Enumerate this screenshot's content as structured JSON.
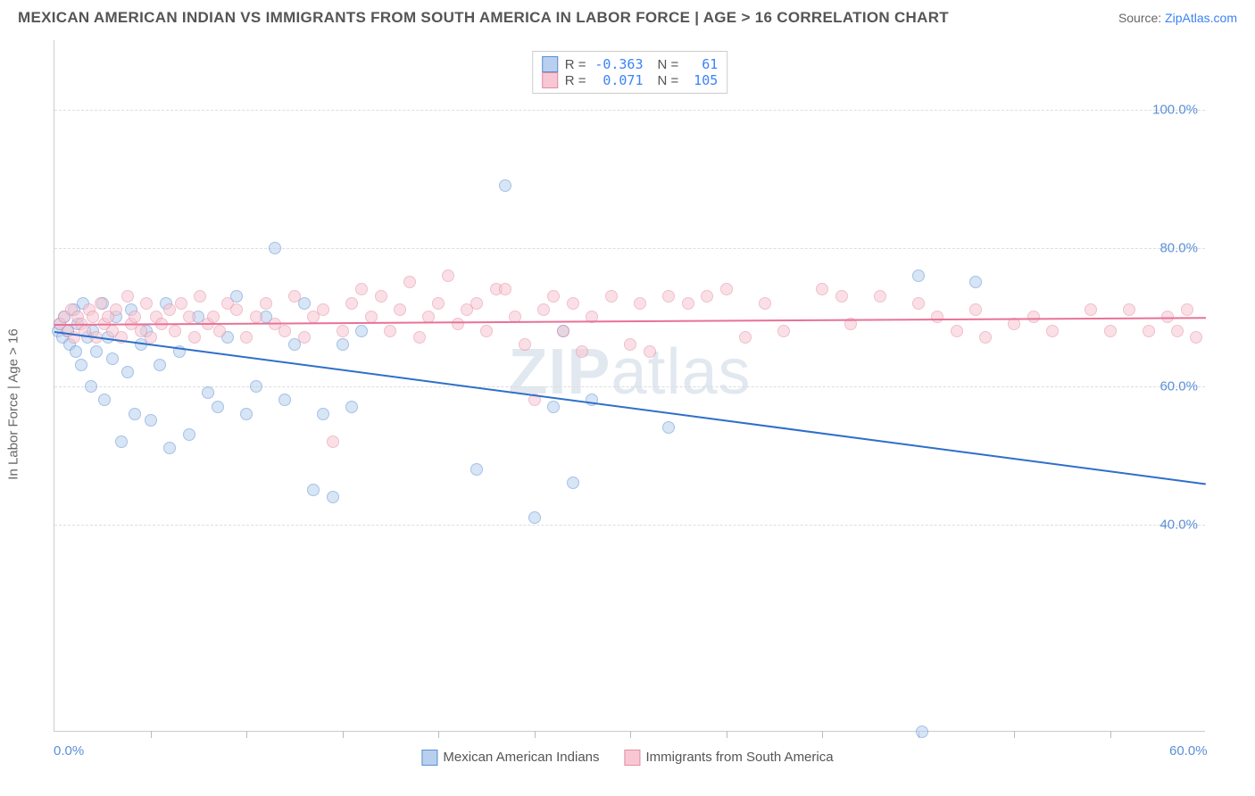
{
  "header": {
    "title": "MEXICAN AMERICAN INDIAN VS IMMIGRANTS FROM SOUTH AMERICA IN LABOR FORCE | AGE > 16 CORRELATION CHART",
    "source_prefix": "Source: ",
    "source_link": "ZipAtlas.com"
  },
  "chart": {
    "type": "scatter",
    "ylabel": "In Labor Force | Age > 16",
    "xlim": [
      0,
      60
    ],
    "ylim": [
      10,
      110
    ],
    "yticks": [
      {
        "v": 40,
        "label": "40.0%"
      },
      {
        "v": 60,
        "label": "60.0%"
      },
      {
        "v": 80,
        "label": "80.0%"
      },
      {
        "v": 100,
        "label": "100.0%"
      }
    ],
    "xticks_minor": [
      5,
      10,
      15,
      20,
      25,
      30,
      35,
      40,
      45,
      50,
      55
    ],
    "xticks_label": [
      {
        "v": 0,
        "label": "0.0%"
      },
      {
        "v": 60,
        "label": "60.0%"
      }
    ],
    "marker_radius": 7,
    "marker_opacity": 0.55,
    "background_color": "#ffffff",
    "grid_color": "#dddddd",
    "watermark": "ZIPatlas"
  },
  "legend_top": {
    "series": [
      {
        "swatch_fill": "#b8d0ee",
        "swatch_border": "#5a8fd6",
        "R": "-0.363",
        "N": "61"
      },
      {
        "swatch_fill": "#f7c8d3",
        "swatch_border": "#e68aa2",
        "R": "0.071",
        "N": "105"
      }
    ],
    "label_R": "R =",
    "label_N": "N ="
  },
  "legend_bottom": {
    "items": [
      {
        "swatch_fill": "#b8d0ee",
        "swatch_border": "#5a8fd6",
        "label": "Mexican American Indians"
      },
      {
        "swatch_fill": "#f7c8d3",
        "swatch_border": "#e68aa2",
        "label": "Immigrants from South America"
      }
    ]
  },
  "series": [
    {
      "name": "Mexican American Indians",
      "fill": "#b8d0ee",
      "stroke": "#5a8fd6",
      "trend": {
        "x1": 0,
        "y1": 68,
        "x2": 60,
        "y2": 46,
        "color": "#2f6fc9",
        "width": 2
      },
      "points": [
        [
          0.2,
          68
        ],
        [
          0.3,
          69
        ],
        [
          0.4,
          67
        ],
        [
          0.5,
          70
        ],
        [
          0.7,
          68
        ],
        [
          0.8,
          66
        ],
        [
          1,
          71
        ],
        [
          1.1,
          65
        ],
        [
          1.2,
          69
        ],
        [
          1.4,
          63
        ],
        [
          1.5,
          72
        ],
        [
          1.7,
          67
        ],
        [
          1.9,
          60
        ],
        [
          2,
          68
        ],
        [
          2.2,
          65
        ],
        [
          2.5,
          72
        ],
        [
          2.6,
          58
        ],
        [
          2.8,
          67
        ],
        [
          3,
          64
        ],
        [
          3.2,
          70
        ],
        [
          3.5,
          52
        ],
        [
          3.8,
          62
        ],
        [
          4,
          71
        ],
        [
          4.2,
          56
        ],
        [
          4.5,
          66
        ],
        [
          4.8,
          68
        ],
        [
          5,
          55
        ],
        [
          5.5,
          63
        ],
        [
          5.8,
          72
        ],
        [
          6,
          51
        ],
        [
          6.5,
          65
        ],
        [
          7,
          53
        ],
        [
          7.5,
          70
        ],
        [
          8,
          59
        ],
        [
          8.5,
          57
        ],
        [
          9,
          67
        ],
        [
          9.5,
          73
        ],
        [
          10,
          56
        ],
        [
          10.5,
          60
        ],
        [
          11,
          70
        ],
        [
          11.5,
          80
        ],
        [
          12,
          58
        ],
        [
          12.5,
          66
        ],
        [
          13,
          72
        ],
        [
          13.5,
          45
        ],
        [
          14,
          56
        ],
        [
          14.5,
          44
        ],
        [
          15,
          66
        ],
        [
          15.5,
          57
        ],
        [
          16,
          68
        ],
        [
          22,
          48
        ],
        [
          23.5,
          89
        ],
        [
          25,
          41
        ],
        [
          26,
          57
        ],
        [
          26.5,
          68
        ],
        [
          27,
          46
        ],
        [
          28,
          58
        ],
        [
          32,
          54
        ],
        [
          45,
          76
        ],
        [
          45.2,
          10
        ],
        [
          48,
          75
        ]
      ]
    },
    {
      "name": "Immigrants from South America",
      "fill": "#f7c8d3",
      "stroke": "#e68aa2",
      "trend": {
        "x1": 0,
        "y1": 69,
        "x2": 60,
        "y2": 70,
        "color": "#e87298",
        "width": 2
      },
      "points": [
        [
          0.3,
          69
        ],
        [
          0.5,
          70
        ],
        [
          0.7,
          68
        ],
        [
          0.9,
          71
        ],
        [
          1,
          67
        ],
        [
          1.2,
          70
        ],
        [
          1.4,
          69
        ],
        [
          1.6,
          68
        ],
        [
          1.8,
          71
        ],
        [
          2,
          70
        ],
        [
          2.2,
          67
        ],
        [
          2.4,
          72
        ],
        [
          2.6,
          69
        ],
        [
          2.8,
          70
        ],
        [
          3,
          68
        ],
        [
          3.2,
          71
        ],
        [
          3.5,
          67
        ],
        [
          3.8,
          73
        ],
        [
          4,
          69
        ],
        [
          4.2,
          70
        ],
        [
          4.5,
          68
        ],
        [
          4.8,
          72
        ],
        [
          5,
          67
        ],
        [
          5.3,
          70
        ],
        [
          5.6,
          69
        ],
        [
          6,
          71
        ],
        [
          6.3,
          68
        ],
        [
          6.6,
          72
        ],
        [
          7,
          70
        ],
        [
          7.3,
          67
        ],
        [
          7.6,
          73
        ],
        [
          8,
          69
        ],
        [
          8.3,
          70
        ],
        [
          8.6,
          68
        ],
        [
          9,
          72
        ],
        [
          9.5,
          71
        ],
        [
          10,
          67
        ],
        [
          10.5,
          70
        ],
        [
          11,
          72
        ],
        [
          11.5,
          69
        ],
        [
          12,
          68
        ],
        [
          12.5,
          73
        ],
        [
          13,
          67
        ],
        [
          13.5,
          70
        ],
        [
          14,
          71
        ],
        [
          14.5,
          52
        ],
        [
          15,
          68
        ],
        [
          15.5,
          72
        ],
        [
          16,
          74
        ],
        [
          16.5,
          70
        ],
        [
          17,
          73
        ],
        [
          17.5,
          68
        ],
        [
          18,
          71
        ],
        [
          18.5,
          75
        ],
        [
          19,
          67
        ],
        [
          19.5,
          70
        ],
        [
          20,
          72
        ],
        [
          20.5,
          76
        ],
        [
          21,
          69
        ],
        [
          21.5,
          71
        ],
        [
          22,
          72
        ],
        [
          22.5,
          68
        ],
        [
          23,
          74
        ],
        [
          23.5,
          74
        ],
        [
          24,
          70
        ],
        [
          24.5,
          66
        ],
        [
          25,
          58
        ],
        [
          25.5,
          71
        ],
        [
          26,
          73
        ],
        [
          26.5,
          68
        ],
        [
          27,
          72
        ],
        [
          27.5,
          65
        ],
        [
          28,
          70
        ],
        [
          29,
          73
        ],
        [
          30,
          66
        ],
        [
          30.5,
          72
        ],
        [
          31,
          65
        ],
        [
          32,
          73
        ],
        [
          33,
          72
        ],
        [
          34,
          73
        ],
        [
          35,
          74
        ],
        [
          36,
          67
        ],
        [
          37,
          72
        ],
        [
          38,
          68
        ],
        [
          40,
          74
        ],
        [
          41,
          73
        ],
        [
          41.5,
          69
        ],
        [
          43,
          73
        ],
        [
          45,
          72
        ],
        [
          46,
          70
        ],
        [
          47,
          68
        ],
        [
          48,
          71
        ],
        [
          48.5,
          67
        ],
        [
          50,
          69
        ],
        [
          51,
          70
        ],
        [
          52,
          68
        ],
        [
          54,
          71
        ],
        [
          55,
          68
        ],
        [
          56,
          71
        ],
        [
          57,
          68
        ],
        [
          58,
          70
        ],
        [
          58.5,
          68
        ],
        [
          59,
          71
        ],
        [
          59.5,
          67
        ]
      ]
    }
  ]
}
